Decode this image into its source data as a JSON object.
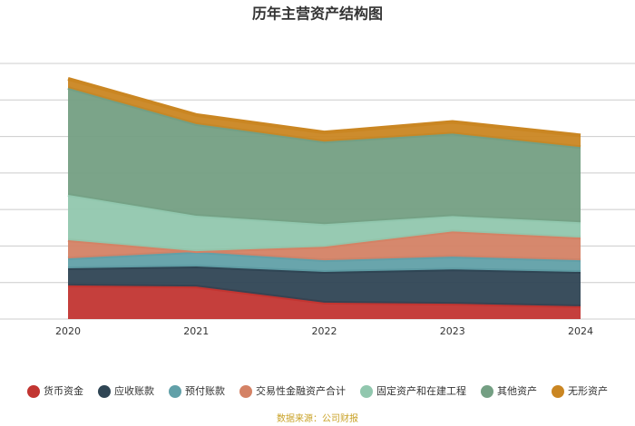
{
  "chart_data": {
    "type": "stacked-area",
    "title": "历年主营资产结构图",
    "footer": "数据来源：公司财报",
    "categories": [
      "2020",
      "2021",
      "2022",
      "2023",
      "2024"
    ],
    "ylim": [
      0,
      70
    ],
    "yticks": [
      0,
      10,
      20,
      30,
      40,
      50,
      60,
      70
    ],
    "grid": true,
    "series": [
      {
        "name": "货币资金",
        "color": "#c23531",
        "values": [
          9.2,
          8.9,
          4.5,
          4.2,
          3.5
        ]
      },
      {
        "name": "应收账款",
        "color": "#2f4554",
        "values": [
          4.7,
          5.5,
          8.4,
          9.4,
          9.4
        ]
      },
      {
        "name": "预付账款",
        "color": "#61a0a8",
        "values": [
          2.7,
          4.0,
          3.2,
          3.5,
          3.2
        ]
      },
      {
        "name": "交易性金融资产合计",
        "color": "#d48265",
        "values": [
          5.0,
          0.2,
          3.7,
          6.9,
          6.2
        ]
      },
      {
        "name": "固定资产和在建工程",
        "color": "#91c7ae",
        "values": [
          12.4,
          9.7,
          6.2,
          4.2,
          4.2
        ]
      },
      {
        "name": "其他资产",
        "color": "#749f83",
        "values": [
          29.3,
          25.1,
          22.6,
          22.6,
          20.6
        ]
      },
      {
        "name": "无形资产",
        "color": "#ca8622",
        "values": [
          2.5,
          2.5,
          2.5,
          3.2,
          3.2
        ]
      }
    ]
  }
}
